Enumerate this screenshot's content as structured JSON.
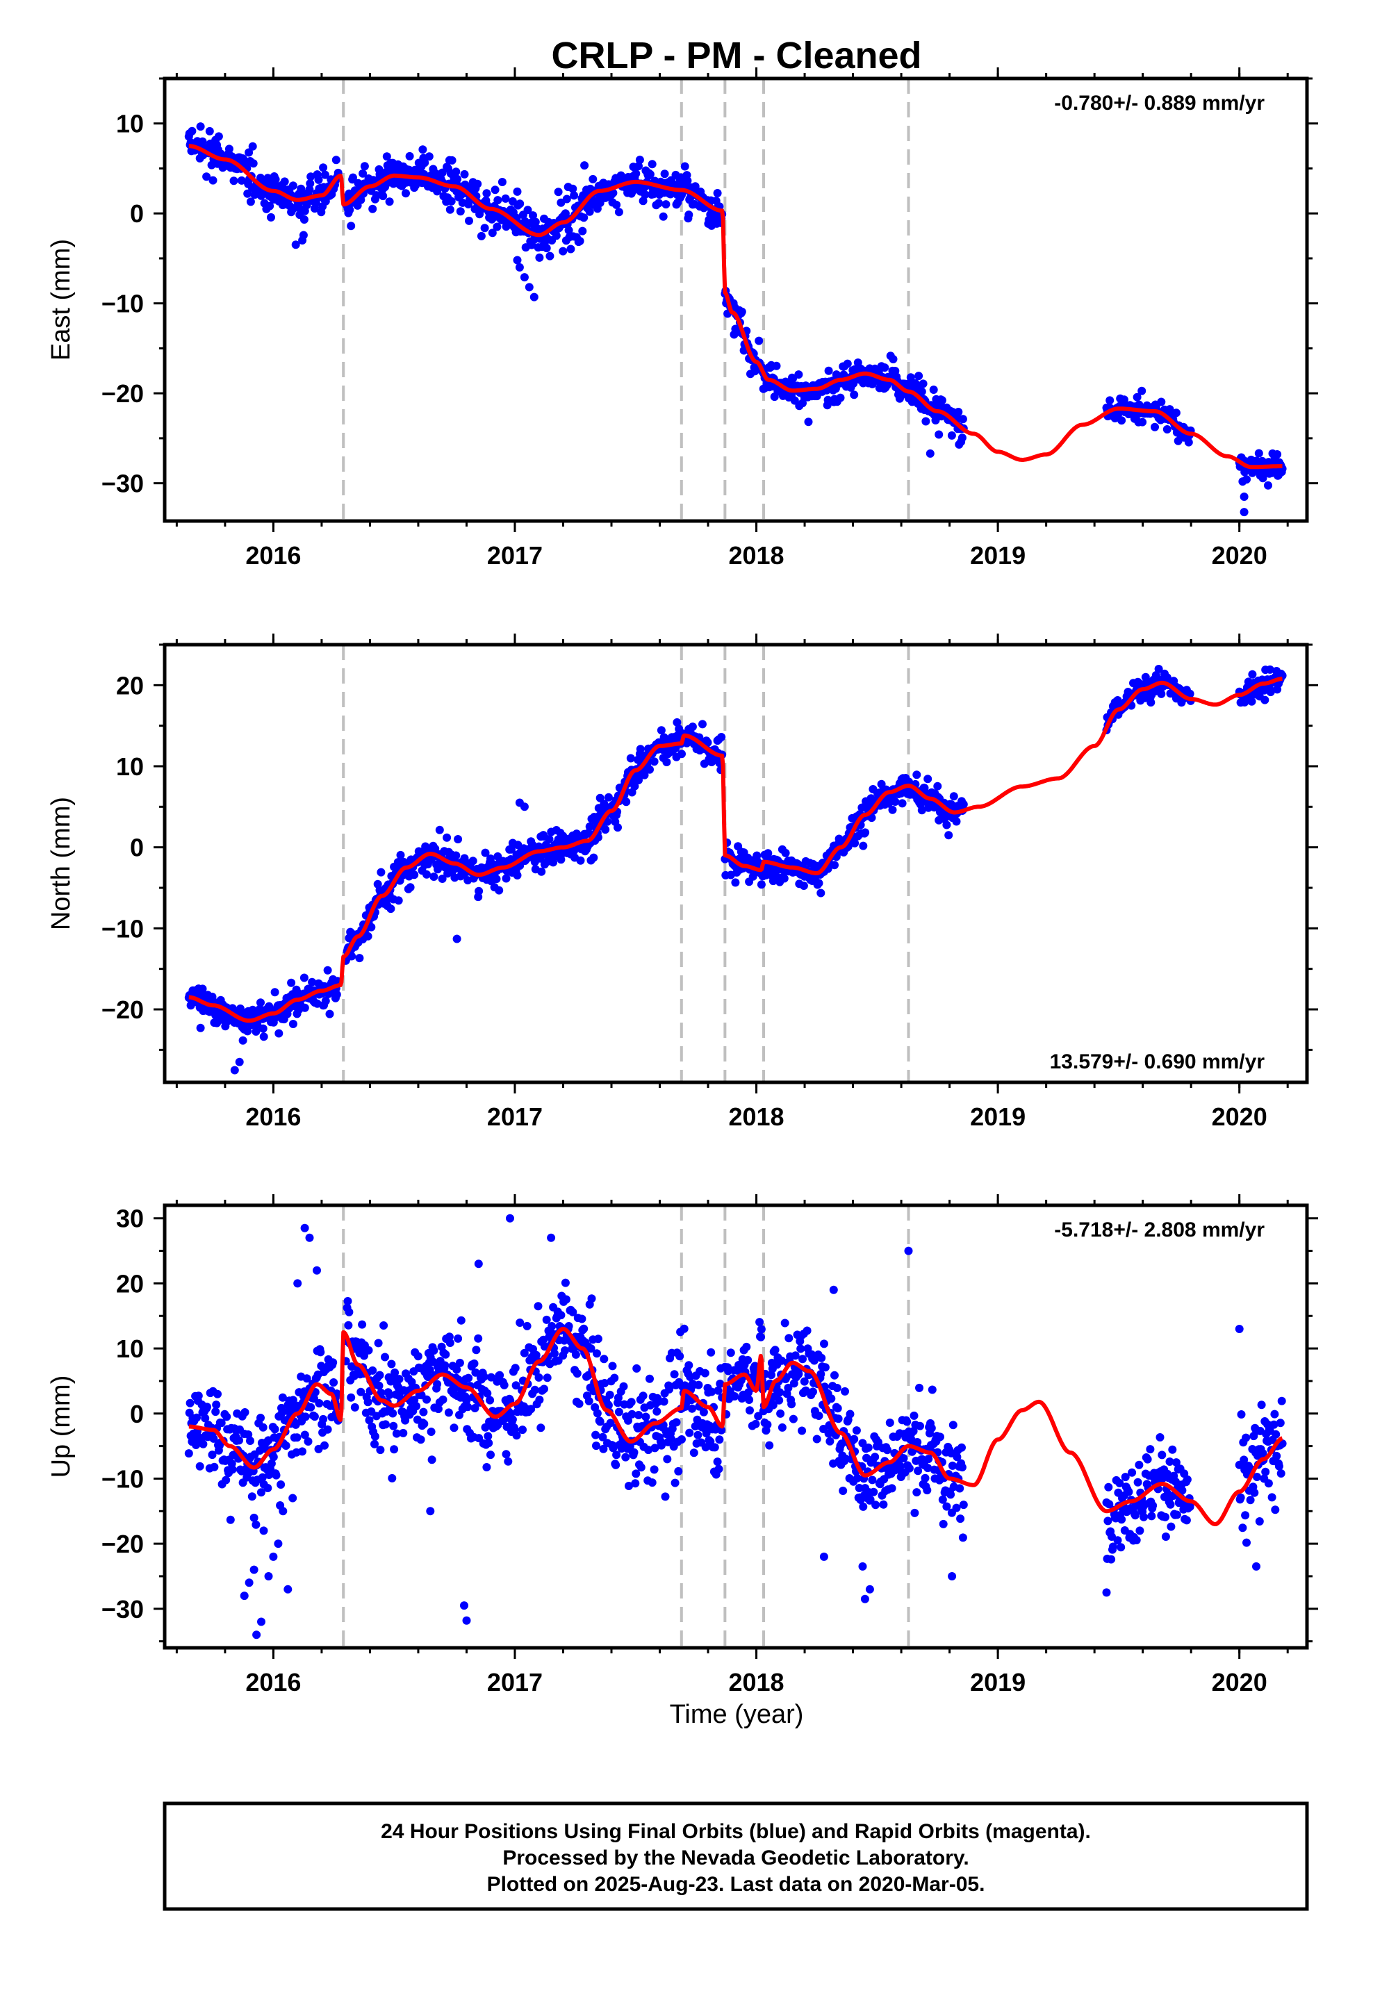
{
  "colors": {
    "points": "#0000ff",
    "model": "#ff0000",
    "breaks": "#bfbfbf",
    "frame": "#000000"
  },
  "chart_data": {
    "type": "scatter",
    "title": "CRLP  - PM - Cleaned",
    "xlabel": "Time (year)",
    "xlim": [
      2015.55,
      2020.28
    ],
    "x_ticks": [
      2016,
      2017,
      2018,
      2019,
      2020
    ],
    "x_tick_labels": [
      "2016",
      "2017",
      "2018",
      "2019",
      "2020"
    ],
    "break_years": [
      2016.29,
      2017.69,
      2017.87,
      2018.03,
      2018.63
    ],
    "panels": [
      {
        "ylabel": "East (mm)",
        "ylim": [
          -34.2,
          15.0
        ],
        "y_ticks": [
          10,
          0,
          -10,
          -20,
          -30
        ],
        "y_tick_labels": [
          "10",
          "0",
          "−10",
          "−20",
          "−30"
        ],
        "rate": "-0.780+/- 0.889 mm/yr",
        "rate_position": "top-right",
        "model_knots": [
          [
            2015.65,
            7.5
          ],
          [
            2015.8,
            6.0
          ],
          [
            2016.0,
            2.5
          ],
          [
            2016.1,
            1.5
          ],
          [
            2016.2,
            2.0
          ],
          [
            2016.28,
            4.2
          ],
          [
            2016.29,
            1.0
          ],
          [
            2016.4,
            3.0
          ],
          [
            2016.5,
            4.2
          ],
          [
            2016.6,
            4.0
          ],
          [
            2016.75,
            3.0
          ],
          [
            2016.9,
            0.5
          ],
          [
            2017.1,
            -2.4
          ],
          [
            2017.2,
            -1.0
          ],
          [
            2017.35,
            2.5
          ],
          [
            2017.5,
            3.5
          ],
          [
            2017.69,
            2.6
          ],
          [
            2017.86,
            0.3
          ],
          [
            2017.87,
            -8.8
          ],
          [
            2017.9,
            -11.0
          ],
          [
            2018.0,
            -16.5
          ],
          [
            2018.05,
            -18.5
          ],
          [
            2018.15,
            -19.7
          ],
          [
            2018.25,
            -19.5
          ],
          [
            2018.35,
            -18.5
          ],
          [
            2018.45,
            -17.8
          ],
          [
            2018.55,
            -18.5
          ],
          [
            2018.63,
            -19.8
          ],
          [
            2018.75,
            -22.0
          ],
          [
            2018.9,
            -24.5
          ],
          [
            2019.0,
            -26.5
          ],
          [
            2019.1,
            -27.4
          ],
          [
            2019.2,
            -26.8
          ],
          [
            2019.35,
            -23.5
          ],
          [
            2019.5,
            -21.7
          ],
          [
            2019.65,
            -22.0
          ],
          [
            2019.8,
            -24.5
          ],
          [
            2019.95,
            -27.0
          ],
          [
            2020.05,
            -28.2
          ],
          [
            2020.18,
            -28.1
          ]
        ],
        "observation_windows": [
          [
            2015.65,
            2016.27,
            0.75,
            2.3
          ],
          [
            2016.3,
            2017.86,
            0.75,
            2.2
          ],
          [
            2017.87,
            2018.86,
            0.55,
            1.6
          ],
          [
            2019.45,
            2019.8,
            0.3,
            1.3
          ],
          [
            2020.0,
            2020.18,
            0.5,
            1.3
          ]
        ],
        "outliers": [
          [
            2017.08,
            -9.3
          ],
          [
            2017.06,
            -8.2
          ],
          [
            2017.04,
            -7.1
          ],
          [
            2017.02,
            -6.0
          ],
          [
            2017.01,
            -5.2
          ],
          [
            2016.12,
            -3.0
          ],
          [
            2018.72,
            -26.7
          ],
          [
            2020.02,
            -33.2
          ],
          [
            2020.02,
            -31.5
          ]
        ]
      },
      {
        "ylabel": "North (mm)",
        "ylim": [
          -29.0,
          25.0
        ],
        "y_ticks": [
          20,
          10,
          0,
          -10,
          -20
        ],
        "y_tick_labels": [
          "20",
          "10",
          "0",
          "−10",
          "−20"
        ],
        "rate": "13.579+/- 0.690 mm/yr",
        "rate_position": "bottom-right",
        "model_knots": [
          [
            2015.65,
            -18.5
          ],
          [
            2015.75,
            -19.5
          ],
          [
            2015.9,
            -21.4
          ],
          [
            2016.0,
            -20.5
          ],
          [
            2016.1,
            -18.8
          ],
          [
            2016.2,
            -17.7
          ],
          [
            2016.28,
            -17.0
          ],
          [
            2016.29,
            -13.5
          ],
          [
            2016.35,
            -11.0
          ],
          [
            2016.45,
            -6.0
          ],
          [
            2016.55,
            -2.5
          ],
          [
            2016.65,
            -0.8
          ],
          [
            2016.75,
            -2.0
          ],
          [
            2016.85,
            -3.4
          ],
          [
            2016.95,
            -2.5
          ],
          [
            2017.1,
            -0.5
          ],
          [
            2017.2,
            0.0
          ],
          [
            2017.3,
            0.8
          ],
          [
            2017.4,
            4.5
          ],
          [
            2017.5,
            9.5
          ],
          [
            2017.6,
            12.5
          ],
          [
            2017.69,
            12.8
          ],
          [
            2017.7,
            13.8
          ],
          [
            2017.86,
            11.3
          ],
          [
            2017.87,
            -1.0
          ],
          [
            2017.95,
            -2.3
          ],
          [
            2018.02,
            -2.8
          ],
          [
            2018.03,
            -1.8
          ],
          [
            2018.15,
            -2.5
          ],
          [
            2018.25,
            -3.2
          ],
          [
            2018.35,
            0.0
          ],
          [
            2018.45,
            4.0
          ],
          [
            2018.55,
            6.8
          ],
          [
            2018.63,
            7.6
          ],
          [
            2018.72,
            6.0
          ],
          [
            2018.82,
            4.3
          ],
          [
            2018.92,
            5.0
          ],
          [
            2019.1,
            7.5
          ],
          [
            2019.25,
            8.5
          ],
          [
            2019.4,
            12.5
          ],
          [
            2019.5,
            17.0
          ],
          [
            2019.6,
            19.5
          ],
          [
            2019.68,
            20.3
          ],
          [
            2019.8,
            18.3
          ],
          [
            2019.9,
            17.6
          ],
          [
            2020.0,
            18.8
          ],
          [
            2020.1,
            20.2
          ],
          [
            2020.18,
            20.8
          ]
        ],
        "observation_windows": [
          [
            2015.65,
            2016.27,
            0.8,
            1.8
          ],
          [
            2016.3,
            2017.86,
            0.8,
            1.8
          ],
          [
            2017.87,
            2018.86,
            0.8,
            1.8
          ],
          [
            2019.45,
            2019.8,
            0.5,
            1.2
          ],
          [
            2020.0,
            2020.18,
            0.6,
            1.2
          ]
        ],
        "outliers": [
          [
            2016.76,
            -11.3
          ],
          [
            2015.84,
            -27.5
          ],
          [
            2015.86,
            -26.5
          ],
          [
            2017.02,
            5.5
          ],
          [
            2017.04,
            5.0
          ]
        ]
      },
      {
        "ylabel": "Up (mm)",
        "ylim": [
          -36.0,
          32.0
        ],
        "y_ticks": [
          30,
          20,
          10,
          0,
          -10,
          -20,
          -30
        ],
        "y_tick_labels": [
          "30",
          "20",
          "10",
          "0",
          "−10",
          "−20",
          "−30"
        ],
        "rate": "-5.718+/- 2.808 mm/yr",
        "rate_position": "top-right",
        "model_knots": [
          [
            2015.65,
            -2.0
          ],
          [
            2015.75,
            -2.5
          ],
          [
            2015.82,
            -5.0
          ],
          [
            2015.92,
            -8.3
          ],
          [
            2016.0,
            -5.5
          ],
          [
            2016.1,
            0.0
          ],
          [
            2016.18,
            4.5
          ],
          [
            2016.24,
            3.0
          ],
          [
            2016.28,
            -1.0
          ],
          [
            2016.29,
            12.5
          ],
          [
            2016.35,
            7.5
          ],
          [
            2016.45,
            2.0
          ],
          [
            2016.5,
            1.2
          ],
          [
            2016.6,
            3.5
          ],
          [
            2016.7,
            6.0
          ],
          [
            2016.8,
            4.0
          ],
          [
            2016.92,
            -0.5
          ],
          [
            2017.0,
            1.5
          ],
          [
            2017.1,
            8.0
          ],
          [
            2017.2,
            13.0
          ],
          [
            2017.28,
            10.0
          ],
          [
            2017.38,
            0.5
          ],
          [
            2017.48,
            -4.3
          ],
          [
            2017.58,
            -1.5
          ],
          [
            2017.69,
            0.8
          ],
          [
            2017.7,
            3.5
          ],
          [
            2017.8,
            1.0
          ],
          [
            2017.86,
            -2.0
          ],
          [
            2017.87,
            4.5
          ],
          [
            2017.95,
            6.0
          ],
          [
            2018.0,
            3.5
          ],
          [
            2018.02,
            9.0
          ],
          [
            2018.03,
            1.0
          ],
          [
            2018.08,
            5.0
          ],
          [
            2018.15,
            7.8
          ],
          [
            2018.22,
            6.5
          ],
          [
            2018.35,
            -3.0
          ],
          [
            2018.45,
            -9.5
          ],
          [
            2018.55,
            -7.5
          ],
          [
            2018.63,
            -5.0
          ],
          [
            2018.72,
            -6.0
          ],
          [
            2018.8,
            -10.0
          ],
          [
            2018.9,
            -11.0
          ],
          [
            2019.0,
            -4.0
          ],
          [
            2019.1,
            0.5
          ],
          [
            2019.17,
            1.8
          ],
          [
            2019.3,
            -6.0
          ],
          [
            2019.45,
            -15.0
          ],
          [
            2019.55,
            -13.5
          ],
          [
            2019.68,
            -10.8
          ],
          [
            2019.8,
            -13.5
          ],
          [
            2019.9,
            -17.0
          ],
          [
            2020.0,
            -12.0
          ],
          [
            2020.1,
            -7.0
          ],
          [
            2020.18,
            -3.8
          ]
        ],
        "observation_windows": [
          [
            2015.65,
            2016.27,
            4.5,
            6.0
          ],
          [
            2016.3,
            2017.86,
            4.5,
            6.5
          ],
          [
            2017.87,
            2018.86,
            4.5,
            6.0
          ],
          [
            2019.45,
            2019.8,
            4.0,
            5.0
          ],
          [
            2020.0,
            2020.18,
            4.5,
            6.0
          ]
        ],
        "outliers": [
          [
            2015.93,
            -34.0
          ],
          [
            2015.95,
            -32.0
          ],
          [
            2015.88,
            -28.0
          ],
          [
            2015.9,
            -26.0
          ],
          [
            2015.98,
            -25.0
          ],
          [
            2016.0,
            -22.0
          ],
          [
            2016.02,
            -20.0
          ],
          [
            2015.96,
            -18.0
          ],
          [
            2016.04,
            -15.0
          ],
          [
            2015.92,
            -24.0
          ],
          [
            2016.06,
            -27.0
          ],
          [
            2016.08,
            -13.0
          ],
          [
            2016.15,
            27.0
          ],
          [
            2016.13,
            28.5
          ],
          [
            2016.18,
            22.0
          ],
          [
            2016.1,
            20.0
          ],
          [
            2017.15,
            27.0
          ],
          [
            2016.98,
            30.0
          ],
          [
            2016.85,
            23.0
          ],
          [
            2016.79,
            -29.5
          ],
          [
            2016.8,
            -31.8
          ],
          [
            2016.65,
            -15.0
          ],
          [
            2018.45,
            -28.5
          ],
          [
            2018.47,
            -27.0
          ],
          [
            2018.44,
            -23.5
          ],
          [
            2018.63,
            25.0
          ],
          [
            2018.32,
            19.0
          ],
          [
            2018.28,
            -22.0
          ],
          [
            2018.81,
            -25.0
          ],
          [
            2019.45,
            -27.5
          ],
          [
            2020.07,
            -23.5
          ],
          [
            2020.0,
            13.0
          ]
        ]
      }
    ]
  },
  "footer": {
    "line1": "24 Hour Positions Using Final Orbits (blue) and Rapid Orbits (magenta).",
    "line2": "Processed by the Nevada Geodetic Laboratory.",
    "line3": "Plotted on 2025-Aug-23. Last data on 2020-Mar-05."
  }
}
